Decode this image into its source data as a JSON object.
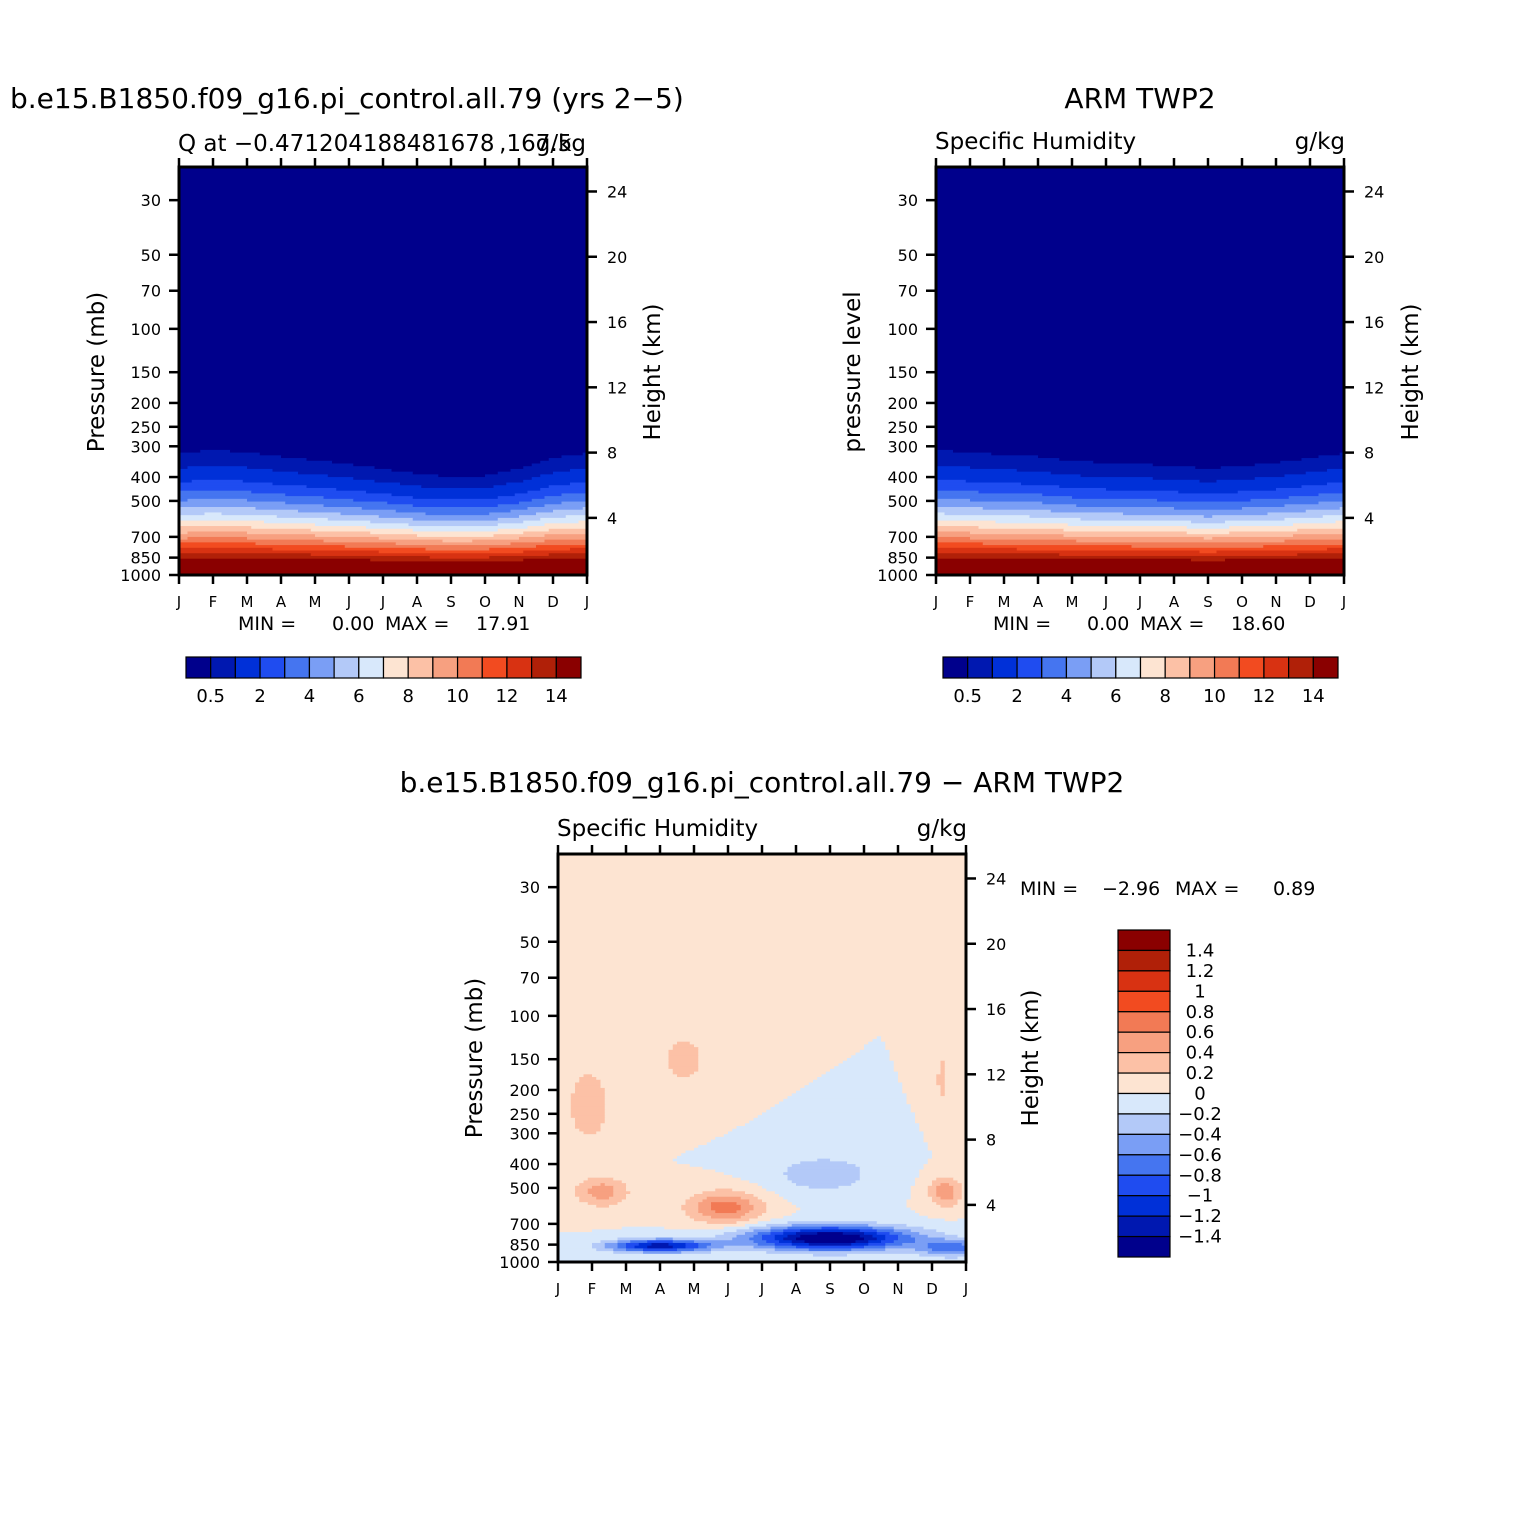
{
  "chart_data": [
    {
      "type": "heatmap",
      "id": "model",
      "title": "b.e15.B1850.f09_g16.pi_control.all.79 (yrs 2−5)",
      "subtitle_left": "Q at −0.471204188481678 ,167.5",
      "subtitle_right": "g/kg",
      "ylabel": "Pressure (mb)",
      "y2label": "Height (km)",
      "months": [
        "J",
        "F",
        "M",
        "A",
        "M",
        "J",
        "J",
        "A",
        "S",
        "O",
        "N",
        "D",
        "J"
      ],
      "pressure_ticks": [
        30,
        50,
        70,
        100,
        150,
        200,
        250,
        300,
        400,
        500,
        700,
        850,
        1000
      ],
      "height_ticks": [
        24,
        20,
        16,
        12,
        8,
        4
      ],
      "minmax_text": {
        "min_label": "MIN =",
        "min": "0.00",
        "max_label": "MAX =",
        "max": "17.91"
      },
      "colorbar_labels": [
        "0.5",
        "2",
        "4",
        "6",
        "8",
        "10",
        "12",
        "14"
      ],
      "stats": {
        "min": 0.0,
        "max": 17.91
      },
      "tropopause_pressure_by_month": [
        320,
        310,
        318,
        330,
        342,
        355,
        370,
        388,
        400,
        395,
        370,
        335,
        320
      ]
    },
    {
      "type": "heatmap",
      "id": "obs",
      "title": "ARM TWP2",
      "subtitle_left": "Specific Humidity",
      "subtitle_right": "g/kg",
      "ylabel": "pressure level",
      "y2label": "Height (km)",
      "months": [
        "J",
        "F",
        "M",
        "A",
        "M",
        "J",
        "J",
        "A",
        "S",
        "O",
        "N",
        "D",
        "J"
      ],
      "pressure_ticks": [
        30,
        50,
        70,
        100,
        150,
        200,
        250,
        300,
        400,
        500,
        700,
        850,
        1000
      ],
      "height_ticks": [
        24,
        20,
        16,
        12,
        8,
        4
      ],
      "minmax_text": {
        "min_label": "MIN =",
        "min": "0.00",
        "max_label": "MAX =",
        "max": "18.60"
      },
      "colorbar_labels": [
        "0.5",
        "2",
        "4",
        "6",
        "8",
        "10",
        "12",
        "14"
      ],
      "stats": {
        "min": 0.0,
        "max": 18.6
      },
      "tropopause_pressure_by_month": [
        310,
        318,
        325,
        330,
        345,
        350,
        355,
        360,
        370,
        360,
        350,
        335,
        320
      ]
    },
    {
      "type": "heatmap",
      "id": "diff",
      "title": "b.e15.B1850.f09_g16.pi_control.all.79 − ARM TWP2",
      "subtitle_left": "Specific Humidity",
      "subtitle_right": "g/kg",
      "ylabel": "Pressure (mb)",
      "y2label": "Height (km)",
      "months": [
        "J",
        "F",
        "M",
        "A",
        "M",
        "J",
        "J",
        "A",
        "S",
        "O",
        "N",
        "D",
        "J"
      ],
      "pressure_ticks": [
        30,
        50,
        70,
        100,
        150,
        200,
        250,
        300,
        400,
        500,
        700,
        850,
        1000
      ],
      "height_ticks": [
        24,
        20,
        16,
        12,
        8,
        4
      ],
      "minmax_text": {
        "min_label": "MIN =",
        "min": "−2.96",
        "max_label": "MAX =",
        "max": "0.89"
      },
      "colorbar_labels": [
        "1.4",
        "1.2",
        "1",
        "0.8",
        "0.6",
        "0.4",
        "0.2",
        "0",
        "−0.2",
        "−0.4",
        "−0.6",
        "−0.8",
        "−1",
        "−1.2",
        "−1.4"
      ],
      "stats": {
        "min": -2.96,
        "max": 0.89
      }
    }
  ],
  "colors": {
    "humidity_scale": [
      "#00008c",
      "#0018b0",
      "#0030d8",
      "#1f4cf0",
      "#4575f0",
      "#7a9ef5",
      "#b3c9f8",
      "#d8e8fb",
      "#fde4d2",
      "#fcc1a6",
      "#f7a080",
      "#f27a55",
      "#f24b20",
      "#d83212",
      "#b02008",
      "#8a0000"
    ],
    "diff_scale": [
      "#8a0000",
      "#b02008",
      "#d83212",
      "#f24b20",
      "#f27a55",
      "#f7a080",
      "#fcc1a6",
      "#fde4d2",
      "#d8e8fb",
      "#b3c9f8",
      "#7a9ef5",
      "#4575f0",
      "#1f4cf0",
      "#0030d8",
      "#0018b0",
      "#00008c"
    ]
  }
}
